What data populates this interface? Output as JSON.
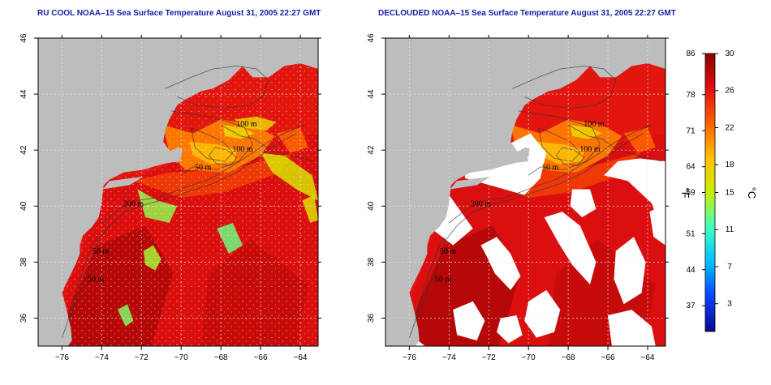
{
  "maps": [
    {
      "title": "RU COOL NOAA–15 Sea Surface Temperature August 31, 2005 22:27 GMT",
      "variant": "cloudy"
    },
    {
      "title": "DECLOUDED NOAA–15 Sea Surface Temperature August 31, 2005 22:27 GMT",
      "variant": "declouded"
    }
  ],
  "axes": {
    "lon_ticks": [
      "−76",
      "−74",
      "−72",
      "−70",
      "−68",
      "−66",
      "−64"
    ],
    "lon_values": [
      -76,
      -74,
      -72,
      -70,
      -68,
      -66,
      -64
    ],
    "lat_ticks": [
      "36",
      "38",
      "40",
      "42",
      "44",
      "46"
    ],
    "lat_values": [
      36,
      38,
      40,
      42,
      44,
      46
    ],
    "lon_range": [
      -77.2,
      -63.1
    ],
    "lat_range": [
      35.0,
      46.0
    ]
  },
  "contours": {
    "labels": [
      "100 m",
      "100 m",
      "50 m",
      "200 m",
      "50 m",
      "50 m"
    ]
  },
  "colorbar": {
    "fahrenheit_ticks": [
      "86",
      "78",
      "71",
      "64",
      "59",
      "51",
      "44",
      "37"
    ],
    "celsius_ticks": [
      "30",
      "26",
      "22",
      "18",
      "15",
      "11",
      "7",
      "3"
    ],
    "fahrenheit_unit": "°F",
    "celsius_unit": "°C",
    "range_c": [
      0,
      30
    ],
    "stops": [
      "#0a0a90",
      "#0a40ff",
      "#00c0ff",
      "#40ffc0",
      "#c8f000",
      "#ffc000",
      "#ff6000",
      "#e01010",
      "#8a0000"
    ]
  },
  "colors": {
    "land": "#bdbdbd",
    "cloud": "#ffffff",
    "grid": "#e8e8e8",
    "title": "#1a1aa8"
  }
}
